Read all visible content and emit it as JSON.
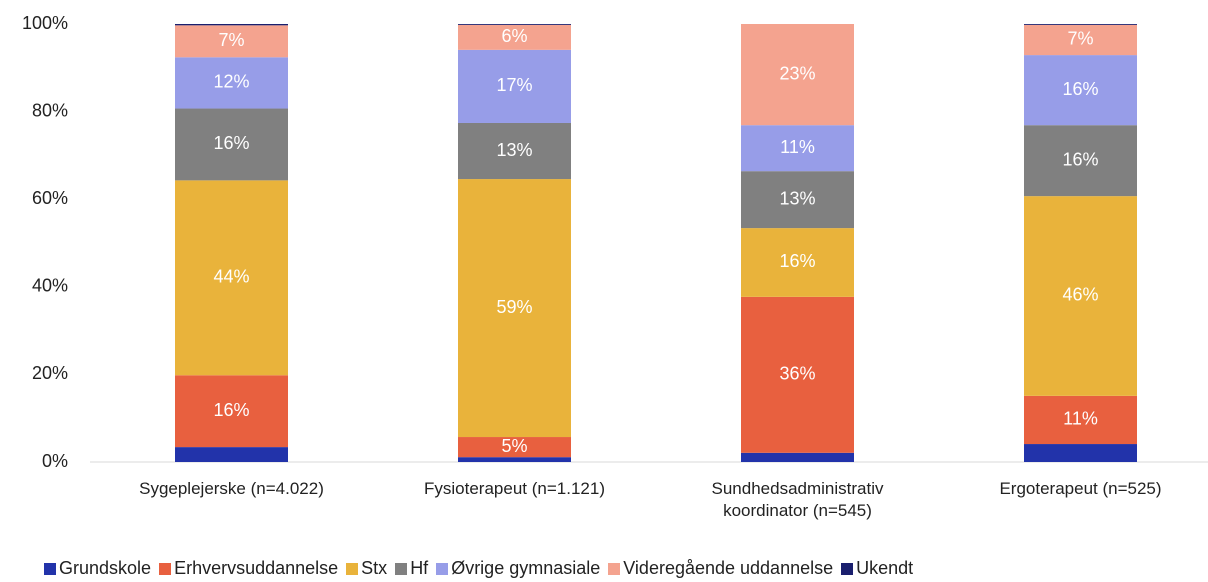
{
  "chart_data": {
    "type": "stacked_bar",
    "categories": [
      "Sygeplejerske (n=4.022)",
      "Fysioterapeut (n=1.121)",
      "Sundhedsadministrativ koordinator (n=545)",
      "Ergoterapeut (n=525)"
    ],
    "series": [
      {
        "name": "Grundskole",
        "color": "#2233aa",
        "values": [
          3.4,
          1.1,
          2.1,
          4.1
        ],
        "value_labels": [
          null,
          null,
          null,
          null
        ]
      },
      {
        "name": "Erhvervsuddannelse",
        "color": "#e8603f",
        "values": [
          16.4,
          4.6,
          35.6,
          11
        ],
        "value_labels": [
          "16%",
          "5%",
          "36%",
          "11%"
        ]
      },
      {
        "name": "Stx",
        "color": "#e9b33b",
        "values": [
          44.5,
          58.9,
          15.7,
          45.6
        ],
        "value_labels": [
          "44%",
          "59%",
          "16%",
          "46%"
        ]
      },
      {
        "name": "Hf",
        "color": "#808080",
        "values": [
          16.4,
          12.8,
          13,
          16.2
        ],
        "value_labels": [
          "16%",
          "13%",
          "13%",
          "16%"
        ]
      },
      {
        "name": "Øvrige gymnasiale",
        "color": "#979de8",
        "values": [
          11.7,
          16.7,
          10.5,
          16
        ],
        "value_labels": [
          "12%",
          "17%",
          "11%",
          "16%"
        ]
      },
      {
        "name": "Videregående uddannelse",
        "color": "#f4a38f",
        "values": [
          7.3,
          5.7,
          23.1,
          6.9
        ],
        "value_labels": [
          "7%",
          "6%",
          "23%",
          "7%"
        ]
      },
      {
        "name": "Ukendt",
        "color": "#1a1f6e",
        "values": [
          0.3,
          0.2,
          0,
          0.2
        ],
        "value_labels": [
          null,
          null,
          null,
          null
        ]
      }
    ],
    "ylim": [
      0,
      100
    ],
    "yticks": [
      {
        "value": 0,
        "label": "0%"
      },
      {
        "value": 20,
        "label": "20%"
      },
      {
        "value": 40,
        "label": "40%"
      },
      {
        "value": 60,
        "label": "60%"
      },
      {
        "value": 80,
        "label": "80%"
      },
      {
        "value": 100,
        "label": "100%"
      }
    ],
    "grid": false,
    "legend": "bottom"
  }
}
